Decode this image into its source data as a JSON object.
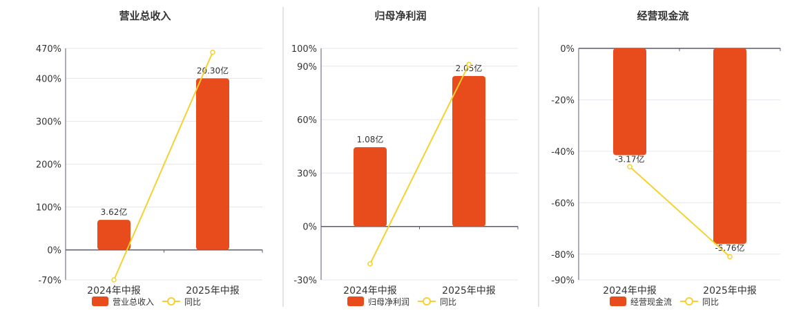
{
  "colors": {
    "bar": "#e84c1c",
    "line": "#f5d130",
    "axis": "#595a6e",
    "grid": "#e4e6f0",
    "divider": "#c8c8c8",
    "text": "#333333"
  },
  "legend": {
    "yoy_label": "同比"
  },
  "chart_data": [
    {
      "type": "bar",
      "title": "营业总收入",
      "categories": [
        "2024年中报",
        "2025年中报"
      ],
      "series": [
        {
          "name": "营业总收入",
          "values": [
            3.62,
            20.3
          ],
          "labels": [
            "3.62亿",
            "20.30亿"
          ]
        },
        {
          "name": "同比",
          "values": [
            -70,
            461
          ]
        }
      ],
      "yticks": [
        470,
        400,
        300,
        200,
        100,
        0,
        -70
      ],
      "ytick_labels": [
        "470%",
        "400%",
        "300%",
        "200%",
        "100%",
        "0%",
        "-70%"
      ],
      "ylim": [
        -70,
        470
      ],
      "bar_percent": [
        70,
        400
      ]
    },
    {
      "type": "bar",
      "title": "归母净利润",
      "categories": [
        "2024年中报",
        "2025年中报"
      ],
      "series": [
        {
          "name": "归母净利润",
          "values": [
            1.08,
            2.05
          ],
          "labels": [
            "1.08亿",
            "2.05亿"
          ]
        },
        {
          "name": "同比",
          "values": [
            -21,
            91
          ]
        }
      ],
      "yticks": [
        100,
        90,
        60,
        30,
        0,
        -30
      ],
      "ytick_labels": [
        "100%",
        "90%",
        "60%",
        "30%",
        "0%",
        "-30%"
      ],
      "ylim": [
        -30,
        100
      ],
      "bar_percent": [
        44.5,
        84.5
      ]
    },
    {
      "type": "bar",
      "title": "经营现金流",
      "categories": [
        "2024年中报",
        "2025年中报"
      ],
      "series": [
        {
          "name": "经营现金流",
          "values": [
            -3.17,
            -5.76
          ],
          "labels": [
            "-3.17亿",
            "-5.76亿"
          ]
        },
        {
          "name": "同比",
          "values": [
            -46,
            -81
          ]
        }
      ],
      "yticks": [
        0,
        -20,
        -40,
        -60,
        -80,
        -90
      ],
      "ytick_labels": [
        "0%",
        "-20%",
        "-40%",
        "-60%",
        "-80%",
        "-90%"
      ],
      "ylim": [
        -90,
        0
      ],
      "bar_percent": [
        -41.5,
        -76
      ]
    }
  ]
}
